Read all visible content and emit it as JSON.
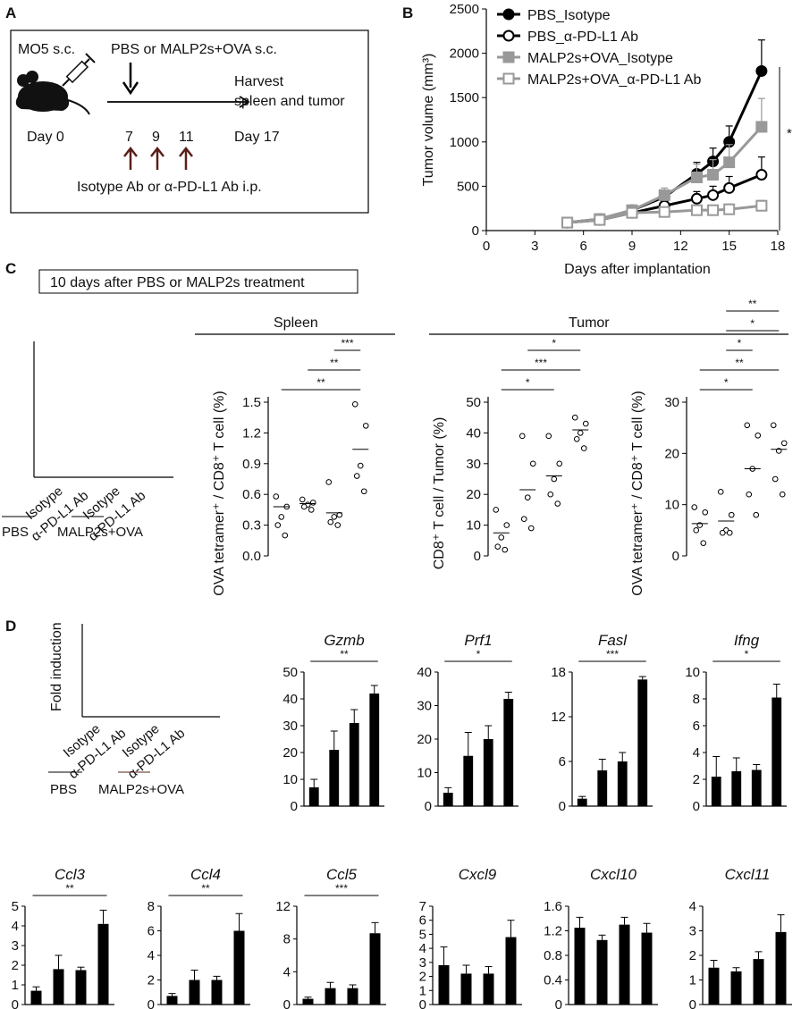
{
  "panels": {
    "A": "A",
    "B": "B",
    "C": "C",
    "D": "D"
  },
  "panel_a": {
    "mo5": "MO5 s.c.",
    "pbs_or": "PBS or MALP2s+OVA s.c.",
    "harvest1": "Harvest",
    "harvest2": "spleen and tumor",
    "day0": "Day 0",
    "d7": "7",
    "d9": "9",
    "d11": "11",
    "day17": "Day 17",
    "isotype_line": "Isotype Ab or α-PD-L1 Ab i.p."
  },
  "panel_c": {
    "banner": "10 days after PBS or MALP2s treatment",
    "spleen": "Spleen",
    "tumor": "Tumor"
  },
  "legend_groups": {
    "isotype": "Isotype",
    "apdl1": "α-PD-L1 Ab",
    "pbs": "PBS",
    "malp": "MALP2s+OVA",
    "fold": "Fold induction"
  },
  "chart_data": [
    {
      "id": "tumor_growth",
      "type": "line",
      "ylabel": "Tumor volume (mm³)",
      "xlabel": "Days after implantation",
      "xlim": [
        0,
        18
      ],
      "ylim": [
        0,
        2500
      ],
      "xticks": [
        "0",
        "3",
        "6",
        "9",
        "12",
        "15",
        "18"
      ],
      "yticks": [
        "0",
        "500",
        "1000",
        "1500",
        "2000",
        "2500"
      ],
      "significance": "*",
      "series": [
        {
          "name": "PBS_Isotype",
          "marker": "filled-circle",
          "color": "#000000",
          "x": [
            5,
            7,
            9,
            11,
            13,
            14,
            15,
            17
          ],
          "y": [
            90,
            130,
            230,
            380,
            640,
            780,
            1000,
            1800
          ],
          "err": [
            30,
            30,
            50,
            60,
            130,
            150,
            180,
            350
          ]
        },
        {
          "name": "PBS_α-PD-L1 Ab",
          "marker": "open-circle",
          "color": "#000000",
          "x": [
            5,
            7,
            9,
            11,
            13,
            14,
            15,
            17
          ],
          "y": [
            90,
            120,
            200,
            280,
            360,
            400,
            480,
            630
          ],
          "err": [
            30,
            30,
            40,
            60,
            80,
            100,
            130,
            200
          ]
        },
        {
          "name": "MALP2s+OVA_Isotype",
          "marker": "filled-square",
          "color": "#999999",
          "x": [
            5,
            7,
            9,
            11,
            13,
            14,
            15,
            17
          ],
          "y": [
            90,
            130,
            230,
            400,
            600,
            630,
            770,
            1170
          ],
          "err": [
            30,
            30,
            50,
            80,
            150,
            170,
            200,
            320
          ]
        },
        {
          "name": "MALP2s+OVA_α-PD-L1 Ab",
          "marker": "open-square",
          "color": "#999999",
          "x": [
            5,
            7,
            9,
            11,
            13,
            14,
            15,
            17
          ],
          "y": [
            90,
            120,
            200,
            210,
            230,
            230,
            240,
            280
          ],
          "err": [
            30,
            30,
            40,
            40,
            50,
            50,
            60,
            60
          ]
        }
      ]
    },
    {
      "id": "spleen_tetramer",
      "type": "scatter",
      "ylabel": "OVA tetramer⁺ / CD8⁺ T cell (%)",
      "ylim": [
        0,
        1.5
      ],
      "yticks": [
        "0.0",
        "0.3",
        "0.6",
        "0.9",
        "1.2",
        "1.5"
      ],
      "groups": [
        [
          0.58,
          0.48,
          0.38,
          0.3,
          0.2
        ],
        [
          0.55,
          0.52,
          0.5,
          0.48,
          0.45
        ],
        [
          0.72,
          0.4,
          0.38,
          0.33,
          0.3
        ],
        [
          1.48,
          1.27,
          0.88,
          0.78,
          0.63
        ]
      ],
      "means": [
        0.48,
        0.51,
        0.42,
        1.04
      ],
      "sigs": [
        {
          "from": 0,
          "to": 3,
          "label": "**"
        },
        {
          "from": 1,
          "to": 3,
          "label": "**"
        },
        {
          "from": 2,
          "to": 3,
          "label": "***"
        }
      ]
    },
    {
      "id": "tumor_cd8",
      "type": "scatter",
      "ylabel": "CD8⁺ T cell / Tumor (%)",
      "ylim": [
        0,
        50
      ],
      "yticks": [
        "0",
        "10",
        "20",
        "30",
        "40",
        "50"
      ],
      "groups": [
        [
          15,
          10,
          6,
          3,
          2
        ],
        [
          39,
          30,
          19,
          12,
          9
        ],
        [
          39,
          30,
          25,
          20,
          17
        ],
        [
          45,
          43,
          40,
          38,
          35
        ]
      ],
      "means": [
        7.5,
        21.5,
        26,
        41
      ],
      "sigs": [
        {
          "from": 0,
          "to": 2,
          "label": "*"
        },
        {
          "from": 0,
          "to": 3,
          "label": "***"
        },
        {
          "from": 1,
          "to": 3,
          "label": "*"
        }
      ]
    },
    {
      "id": "tumor_tetramer",
      "type": "scatter",
      "ylabel": "OVA tetramer⁺ / CD8⁺ T cell (%)",
      "ylim": [
        0,
        30
      ],
      "yticks": [
        "0",
        "10",
        "20",
        "30"
      ],
      "groups": [
        [
          9.5,
          8.5,
          6,
          5,
          2.5
        ],
        [
          12.5,
          8,
          5,
          4.5,
          4.5
        ],
        [
          25.5,
          23.5,
          17,
          12,
          8
        ],
        [
          25.5,
          22,
          20.5,
          15,
          12
        ]
      ],
      "means": [
        6.3,
        6.8,
        17,
        20.8
      ],
      "sigs": [
        {
          "from": 0,
          "to": 2,
          "label": "*"
        },
        {
          "from": 0,
          "to": 3,
          "label": "**"
        },
        {
          "from": 1,
          "to": 2,
          "label": "*"
        },
        {
          "from": 1,
          "to": 3,
          "label": "*"
        },
        {
          "from": 1,
          "to": 3,
          "label": "**"
        }
      ]
    },
    {
      "id": "Gzmb",
      "type": "bar",
      "title": "Gzmb",
      "ylim": [
        0,
        50
      ],
      "yticks": [
        "0",
        "10",
        "20",
        "30",
        "40",
        "50"
      ],
      "values": [
        7,
        21,
        31,
        42
      ],
      "err": [
        3,
        7,
        5,
        3
      ],
      "sig": "**"
    },
    {
      "id": "Prf1",
      "type": "bar",
      "title": "Prf1",
      "ylim": [
        0,
        40
      ],
      "yticks": [
        "0",
        "10",
        "20",
        "30",
        "40"
      ],
      "values": [
        4,
        15,
        20,
        32
      ],
      "err": [
        1.5,
        7,
        4,
        2
      ],
      "sig": "*"
    },
    {
      "id": "Fasl",
      "type": "bar",
      "title": "Fasl",
      "ylim": [
        0,
        18
      ],
      "yticks": [
        "0",
        "6",
        "12",
        "18"
      ],
      "values": [
        1,
        4.8,
        6,
        17
      ],
      "err": [
        0.3,
        1.5,
        1.2,
        0.4
      ],
      "sig": "***"
    },
    {
      "id": "Ifng",
      "type": "bar",
      "title": "Ifng",
      "ylim": [
        0,
        10
      ],
      "yticks": [
        "0",
        "2",
        "4",
        "6",
        "8",
        "10"
      ],
      "values": [
        2.2,
        2.6,
        2.7,
        8.1
      ],
      "err": [
        1.5,
        1,
        0.4,
        1
      ],
      "sig": "*"
    },
    {
      "id": "Ccl3",
      "type": "bar",
      "title": "Ccl3",
      "ylim": [
        0,
        5
      ],
      "yticks": [
        "0",
        "1",
        "2",
        "3",
        "4",
        "5"
      ],
      "values": [
        0.7,
        1.8,
        1.75,
        4.1
      ],
      "err": [
        0.2,
        0.7,
        0.15,
        0.7
      ],
      "sig": "**"
    },
    {
      "id": "Ccl4",
      "type": "bar",
      "title": "Ccl4",
      "ylim": [
        0,
        8
      ],
      "yticks": [
        "0",
        "2",
        "4",
        "6",
        "8"
      ],
      "values": [
        0.7,
        2,
        2,
        6
      ],
      "err": [
        0.2,
        0.8,
        0.3,
        1.4
      ],
      "sig": "**"
    },
    {
      "id": "Ccl5",
      "type": "bar",
      "title": "Ccl5",
      "ylim": [
        0,
        12
      ],
      "yticks": [
        "0",
        "4",
        "8",
        "12"
      ],
      "values": [
        0.7,
        2,
        2,
        8.7
      ],
      "err": [
        0.2,
        0.7,
        0.4,
        1.3
      ],
      "sig": "***"
    },
    {
      "id": "Cxcl9",
      "type": "bar",
      "title": "Cxcl9",
      "ylim": [
        0,
        7
      ],
      "yticks": [
        "0",
        "1",
        "2",
        "3",
        "4",
        "5",
        "6",
        "7"
      ],
      "values": [
        2.8,
        2.2,
        2.2,
        4.8
      ],
      "err": [
        1.3,
        0.6,
        0.5,
        1.2
      ],
      "sig": ""
    },
    {
      "id": "Cxcl10",
      "type": "bar",
      "title": "Cxcl10",
      "ylim": [
        0,
        1.6
      ],
      "yticks": [
        "0",
        "0.4",
        "0.8",
        "1.2",
        "1.6"
      ],
      "values": [
        1.25,
        1.05,
        1.3,
        1.17
      ],
      "err": [
        0.17,
        0.08,
        0.12,
        0.15
      ],
      "sig": ""
    },
    {
      "id": "Cxcl11",
      "type": "bar",
      "title": "Cxcl11",
      "ylim": [
        0,
        4
      ],
      "yticks": [
        "0",
        "1",
        "2",
        "3",
        "4"
      ],
      "values": [
        1.5,
        1.35,
        1.85,
        2.95
      ],
      "err": [
        0.3,
        0.15,
        0.3,
        0.7
      ],
      "sig": ""
    }
  ]
}
